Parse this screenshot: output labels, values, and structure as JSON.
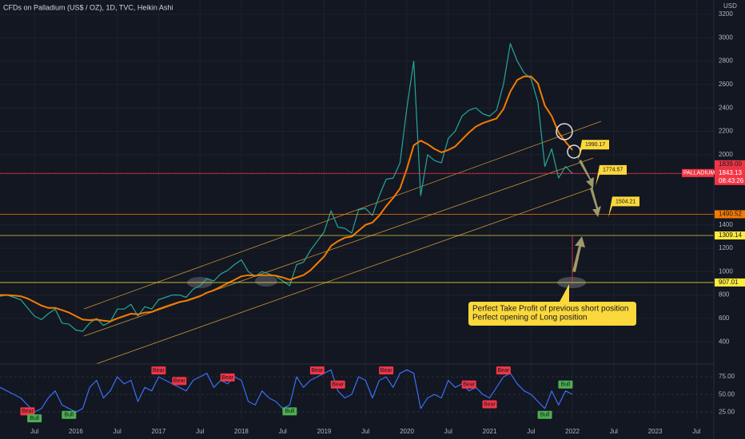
{
  "chart_data": [
    {
      "type": "line",
      "title": "CFDs on Palladium (US$ / OZ), 1D, TVC, Heikin Ashi",
      "y_axis_label": "USD",
      "x": [
        "2015-02",
        "2015-03",
        "2015-04",
        "2015-05",
        "2015-06",
        "2015-07",
        "2015-08",
        "2015-09",
        "2015-10",
        "2015-11",
        "2015-12",
        "2016-01",
        "2016-02",
        "2016-03",
        "2016-04",
        "2016-05",
        "2016-06",
        "2016-07",
        "2016-08",
        "2016-09",
        "2016-10",
        "2016-11",
        "2016-12",
        "2017-01",
        "2017-02",
        "2017-03",
        "2017-04",
        "2017-05",
        "2017-06",
        "2017-07",
        "2017-08",
        "2017-09",
        "2017-10",
        "2017-11",
        "2017-12",
        "2018-01",
        "2018-02",
        "2018-03",
        "2018-04",
        "2018-05",
        "2018-06",
        "2018-07",
        "2018-08",
        "2018-09",
        "2018-10",
        "2018-11",
        "2018-12",
        "2019-01",
        "2019-02",
        "2019-03",
        "2019-04",
        "2019-05",
        "2019-06",
        "2019-07",
        "2019-08",
        "2019-09",
        "2019-10",
        "2019-11",
        "2019-12",
        "2020-01",
        "2020-02",
        "2020-03",
        "2020-04",
        "2020-05",
        "2020-06",
        "2020-07",
        "2020-08",
        "2020-09",
        "2020-10",
        "2020-11",
        "2020-12",
        "2021-01",
        "2021-02",
        "2021-03",
        "2021-04",
        "2021-05",
        "2021-06",
        "2021-07",
        "2021-08",
        "2021-09",
        "2021-10",
        "2021-11",
        "2021-12",
        "2022-01"
      ],
      "series": [
        {
          "name": "PALLADIUM",
          "color": "#26a69a",
          "values": [
            790,
            800,
            780,
            760,
            690,
            620,
            590,
            640,
            680,
            560,
            550,
            500,
            490,
            560,
            600,
            540,
            570,
            680,
            680,
            720,
            620,
            700,
            680,
            760,
            780,
            800,
            800,
            780,
            850,
            880,
            940,
            920,
            980,
            1010,
            1060,
            1100,
            1000,
            960,
            1000,
            980,
            960,
            920,
            880,
            1060,
            1080,
            1180,
            1260,
            1340,
            1520,
            1380,
            1370,
            1330,
            1530,
            1540,
            1480,
            1650,
            1790,
            1800,
            1930,
            2400,
            2800,
            1650,
            2000,
            1950,
            1930,
            2140,
            2200,
            2330,
            2380,
            2400,
            2350,
            2330,
            2380,
            2600,
            2950,
            2800,
            2700,
            2650,
            2450,
            1900,
            2050,
            1800,
            1900,
            1839
          ]
        },
        {
          "color": "#f57c00",
          "values": [
            800,
            800,
            795,
            790,
            770,
            740,
            710,
            690,
            690,
            670,
            650,
            620,
            590,
            585,
            590,
            580,
            575,
            600,
            620,
            640,
            635,
            650,
            655,
            680,
            700,
            720,
            740,
            750,
            770,
            790,
            820,
            840,
            870,
            900,
            930,
            960,
            970,
            965,
            970,
            970,
            965,
            950,
            930,
            950,
            970,
            1010,
            1070,
            1130,
            1220,
            1260,
            1290,
            1300,
            1350,
            1400,
            1420,
            1480,
            1560,
            1630,
            1710,
            1880,
            2080,
            2120,
            2090,
            2050,
            2020,
            2040,
            2070,
            2130,
            2190,
            2240,
            2270,
            2290,
            2310,
            2390,
            2540,
            2640,
            2670,
            2670,
            2610,
            2420,
            2330,
            2190,
            2110,
            2040
          ]
        }
      ],
      "ylim": [
        217,
        3323
      ],
      "yticks": [
        3200,
        3000,
        2800,
        2600,
        2400,
        2200,
        2000,
        1400,
        1200,
        1000,
        800,
        600,
        400
      ],
      "grid": true,
      "levels": [
        {
          "value": 1839,
          "label": "1839.00",
          "color": "#f23645"
        },
        {
          "value": 1490.52,
          "label": "1490.52",
          "color": "#f57c00"
        },
        {
          "value": 1309.14,
          "label": "1309.14",
          "color": "#ffeb3b"
        },
        {
          "value": 907.01,
          "label": "907.01",
          "color": "#ffeb3b"
        }
      ],
      "callouts": [
        {
          "value": 1990.17,
          "label": "1990.17"
        },
        {
          "value": 1774.57,
          "label": "1774.57"
        },
        {
          "value": 1504.21,
          "label": "1504.21"
        }
      ],
      "last_price": {
        "name": "PALLADIUM",
        "value": 1843.13,
        "countdown": "08:43:26",
        "color": "#f23645"
      },
      "annotation": [
        "Perfect Take Profit of previous short position",
        "Perfect opening of Long position"
      ]
    },
    {
      "type": "line",
      "x": [
        "2015-02",
        "2015-03",
        "2015-04",
        "2015-05",
        "2015-06",
        "2015-07",
        "2015-08",
        "2015-09",
        "2015-10",
        "2015-11",
        "2015-12",
        "2016-01",
        "2016-02",
        "2016-03",
        "2016-04",
        "2016-05",
        "2016-06",
        "2016-07",
        "2016-08",
        "2016-09",
        "2016-10",
        "2016-11",
        "2016-12",
        "2017-01",
        "2017-02",
        "2017-03",
        "2017-04",
        "2017-05",
        "2017-06",
        "2017-07",
        "2017-08",
        "2017-09",
        "2017-10",
        "2017-11",
        "2017-12",
        "2018-01",
        "2018-02",
        "2018-03",
        "2018-04",
        "2018-05",
        "2018-06",
        "2018-07",
        "2018-08",
        "2018-09",
        "2018-10",
        "2018-11",
        "2018-12",
        "2019-01",
        "2019-02",
        "2019-03",
        "2019-04",
        "2019-05",
        "2019-06",
        "2019-07",
        "2019-08",
        "2019-09",
        "2019-10",
        "2019-11",
        "2019-12",
        "2020-01",
        "2020-02",
        "2020-03",
        "2020-04",
        "2020-05",
        "2020-06",
        "2020-07",
        "2020-08",
        "2020-09",
        "2020-10",
        "2020-11",
        "2020-12",
        "2021-01",
        "2021-02",
        "2021-03",
        "2021-04",
        "2021-05",
        "2021-06",
        "2021-07",
        "2021-08",
        "2021-09",
        "2021-10",
        "2021-11",
        "2021-12",
        "2022-01"
      ],
      "series": [
        {
          "color": "#3a6ff7",
          "values": [
            60,
            55,
            50,
            45,
            35,
            25,
            30,
            45,
            55,
            35,
            30,
            25,
            30,
            60,
            70,
            45,
            55,
            75,
            65,
            70,
            40,
            60,
            55,
            75,
            70,
            65,
            60,
            55,
            70,
            75,
            80,
            60,
            70,
            65,
            75,
            70,
            40,
            35,
            55,
            45,
            40,
            30,
            35,
            75,
            60,
            70,
            75,
            80,
            85,
            55,
            45,
            50,
            75,
            70,
            45,
            70,
            75,
            60,
            80,
            85,
            80,
            30,
            45,
            50,
            45,
            70,
            60,
            65,
            55,
            60,
            50,
            45,
            60,
            75,
            80,
            65,
            55,
            50,
            40,
            30,
            55,
            35,
            55,
            50
          ]
        }
      ],
      "ylim": [
        15,
        91
      ],
      "yticks": [
        {
          "value": 75,
          "label": "75.00"
        },
        {
          "value": 50,
          "label": "50.00"
        },
        {
          "value": 25,
          "label": "25.00"
        }
      ],
      "xlim": [
        "2015-02",
        "2023-08"
      ],
      "xticks": [
        {
          "value": "2015-07",
          "label": "Jul"
        },
        {
          "value": "2016-01",
          "label": "2016"
        },
        {
          "value": "2016-07",
          "label": "Jul"
        },
        {
          "value": "2017-01",
          "label": "2017"
        },
        {
          "value": "2017-07",
          "label": "Jul"
        },
        {
          "value": "2018-01",
          "label": "2018"
        },
        {
          "value": "2018-07",
          "label": "Jul"
        },
        {
          "value": "2019-01",
          "label": "2019"
        },
        {
          "value": "2019-07",
          "label": "Jul"
        },
        {
          "value": "2020-01",
          "label": "2020"
        },
        {
          "value": "2020-07",
          "label": "Jul"
        },
        {
          "value": "2021-01",
          "label": "2021"
        },
        {
          "value": "2021-07",
          "label": "Jul"
        },
        {
          "value": "2022-01",
          "label": "2022"
        },
        {
          "value": "2022-07",
          "label": "Jul"
        },
        {
          "value": "2023-01",
          "label": "2023"
        },
        {
          "value": "2023-07",
          "label": "Jul"
        }
      ],
      "signals": [
        {
          "date": "2015-06",
          "label": "Bear",
          "color": "#f23645"
        },
        {
          "date": "2015-07",
          "label": "Bull",
          "color": "#4caf50"
        },
        {
          "date": "2015-12",
          "label": "Bull",
          "color": "#4caf50"
        },
        {
          "date": "2017-01",
          "label": "Bear",
          "color": "#f23645"
        },
        {
          "date": "2017-04",
          "label": "Bear",
          "color": "#f23645"
        },
        {
          "date": "2017-11",
          "label": "Bear",
          "color": "#f23645"
        },
        {
          "date": "2018-08",
          "label": "Bull",
          "color": "#4caf50"
        },
        {
          "date": "2018-12",
          "label": "Bear",
          "color": "#f23645"
        },
        {
          "date": "2019-03",
          "label": "Bear",
          "color": "#f23645"
        },
        {
          "date": "2019-10",
          "label": "Bear",
          "color": "#f23645"
        },
        {
          "date": "2020-10",
          "label": "Bear",
          "color": "#f23645"
        },
        {
          "date": "2021-01",
          "label": "Bear",
          "color": "#f23645"
        },
        {
          "date": "2021-03",
          "label": "Bear",
          "color": "#f23645"
        },
        {
          "date": "2021-09",
          "label": "Bull",
          "color": "#4caf50"
        },
        {
          "date": "2021-12",
          "label": "Bull",
          "color": "#4caf50"
        }
      ]
    }
  ]
}
